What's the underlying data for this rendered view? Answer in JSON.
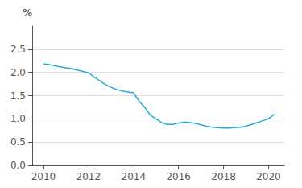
{
  "chart_data": {
    "type": "line",
    "ylabel": "%",
    "x": [
      2010.0,
      2010.25,
      2010.5,
      2010.75,
      2011.0,
      2011.25,
      2011.5,
      2011.75,
      2012.0,
      2012.25,
      2012.5,
      2012.75,
      2013.0,
      2013.25,
      2013.5,
      2013.75,
      2014.0,
      2014.25,
      2014.5,
      2014.75,
      2015.0,
      2015.25,
      2015.5,
      2015.75,
      2016.0,
      2016.25,
      2016.5,
      2016.75,
      2017.0,
      2017.25,
      2017.5,
      2017.75,
      2018.0,
      2018.25,
      2018.5,
      2018.75,
      2019.0,
      2019.25,
      2019.5,
      2019.75,
      2020.0,
      2020.25
    ],
    "values": [
      2.18,
      2.17,
      2.14,
      2.12,
      2.1,
      2.08,
      2.05,
      2.02,
      1.99,
      1.9,
      1.82,
      1.74,
      1.68,
      1.63,
      1.6,
      1.58,
      1.56,
      1.38,
      1.25,
      1.08,
      1.0,
      0.92,
      0.88,
      0.88,
      0.91,
      0.93,
      0.92,
      0.9,
      0.87,
      0.84,
      0.82,
      0.81,
      0.8,
      0.8,
      0.81,
      0.82,
      0.84,
      0.88,
      0.92,
      0.96,
      1.0,
      1.1
    ],
    "color": "#29ABD4",
    "xlim": [
      2009.5,
      2020.7
    ],
    "xticks": [
      2010,
      2012,
      2014,
      2016,
      2018,
      2020
    ],
    "ylim": [
      0.0,
      3.0
    ],
    "yticks": [
      {
        "value": 0.0,
        "label": "0.0"
      },
      0.5,
      {
        "value": 1.0,
        "label": "1.0"
      },
      1.5,
      {
        "value": 2.0,
        "label": "2.0"
      },
      2.5
    ],
    "grid": true
  }
}
